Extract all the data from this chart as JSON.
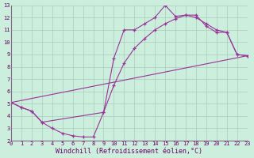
{
  "xlabel": "Windchill (Refroidissement éolien,°C)",
  "bg_color": "#cceedd",
  "line_color": "#993399",
  "grid_color": "#aaccbb",
  "xlim": [
    0,
    23
  ],
  "ylim": [
    2,
    13
  ],
  "xticks": [
    0,
    1,
    2,
    3,
    4,
    5,
    6,
    7,
    8,
    9,
    10,
    11,
    12,
    13,
    14,
    15,
    16,
    17,
    18,
    19,
    20,
    21,
    22,
    23
  ],
  "yticks": [
    2,
    3,
    4,
    5,
    6,
    7,
    8,
    9,
    10,
    11,
    12,
    13
  ],
  "line1_x": [
    0,
    1,
    2,
    3,
    4,
    5,
    6,
    7,
    8,
    9,
    10,
    11,
    12,
    13,
    14,
    15,
    16,
    17,
    18,
    19,
    20,
    21,
    22,
    23
  ],
  "line1_y": [
    5.1,
    4.7,
    4.4,
    3.5,
    3.0,
    2.6,
    2.4,
    2.3,
    2.3,
    4.3,
    8.7,
    11.0,
    11.0,
    11.5,
    12.0,
    13.0,
    12.1,
    12.2,
    12.2,
    11.3,
    10.8,
    10.8,
    9.0,
    8.9
  ],
  "line2_x": [
    0,
    1,
    2,
    3,
    9,
    10,
    11,
    12,
    13,
    14,
    15,
    16,
    17,
    18,
    19,
    20,
    21,
    22,
    23
  ],
  "line2_y": [
    5.1,
    4.7,
    4.4,
    3.5,
    4.3,
    6.5,
    8.3,
    9.5,
    10.3,
    11.0,
    11.5,
    11.9,
    12.2,
    12.0,
    11.5,
    11.0,
    10.8,
    9.0,
    8.9
  ],
  "line3_x": [
    0,
    23
  ],
  "line3_y": [
    5.1,
    8.9
  ],
  "font_color": "#660066",
  "tick_fontsize": 5.0,
  "label_fontsize": 6.0
}
